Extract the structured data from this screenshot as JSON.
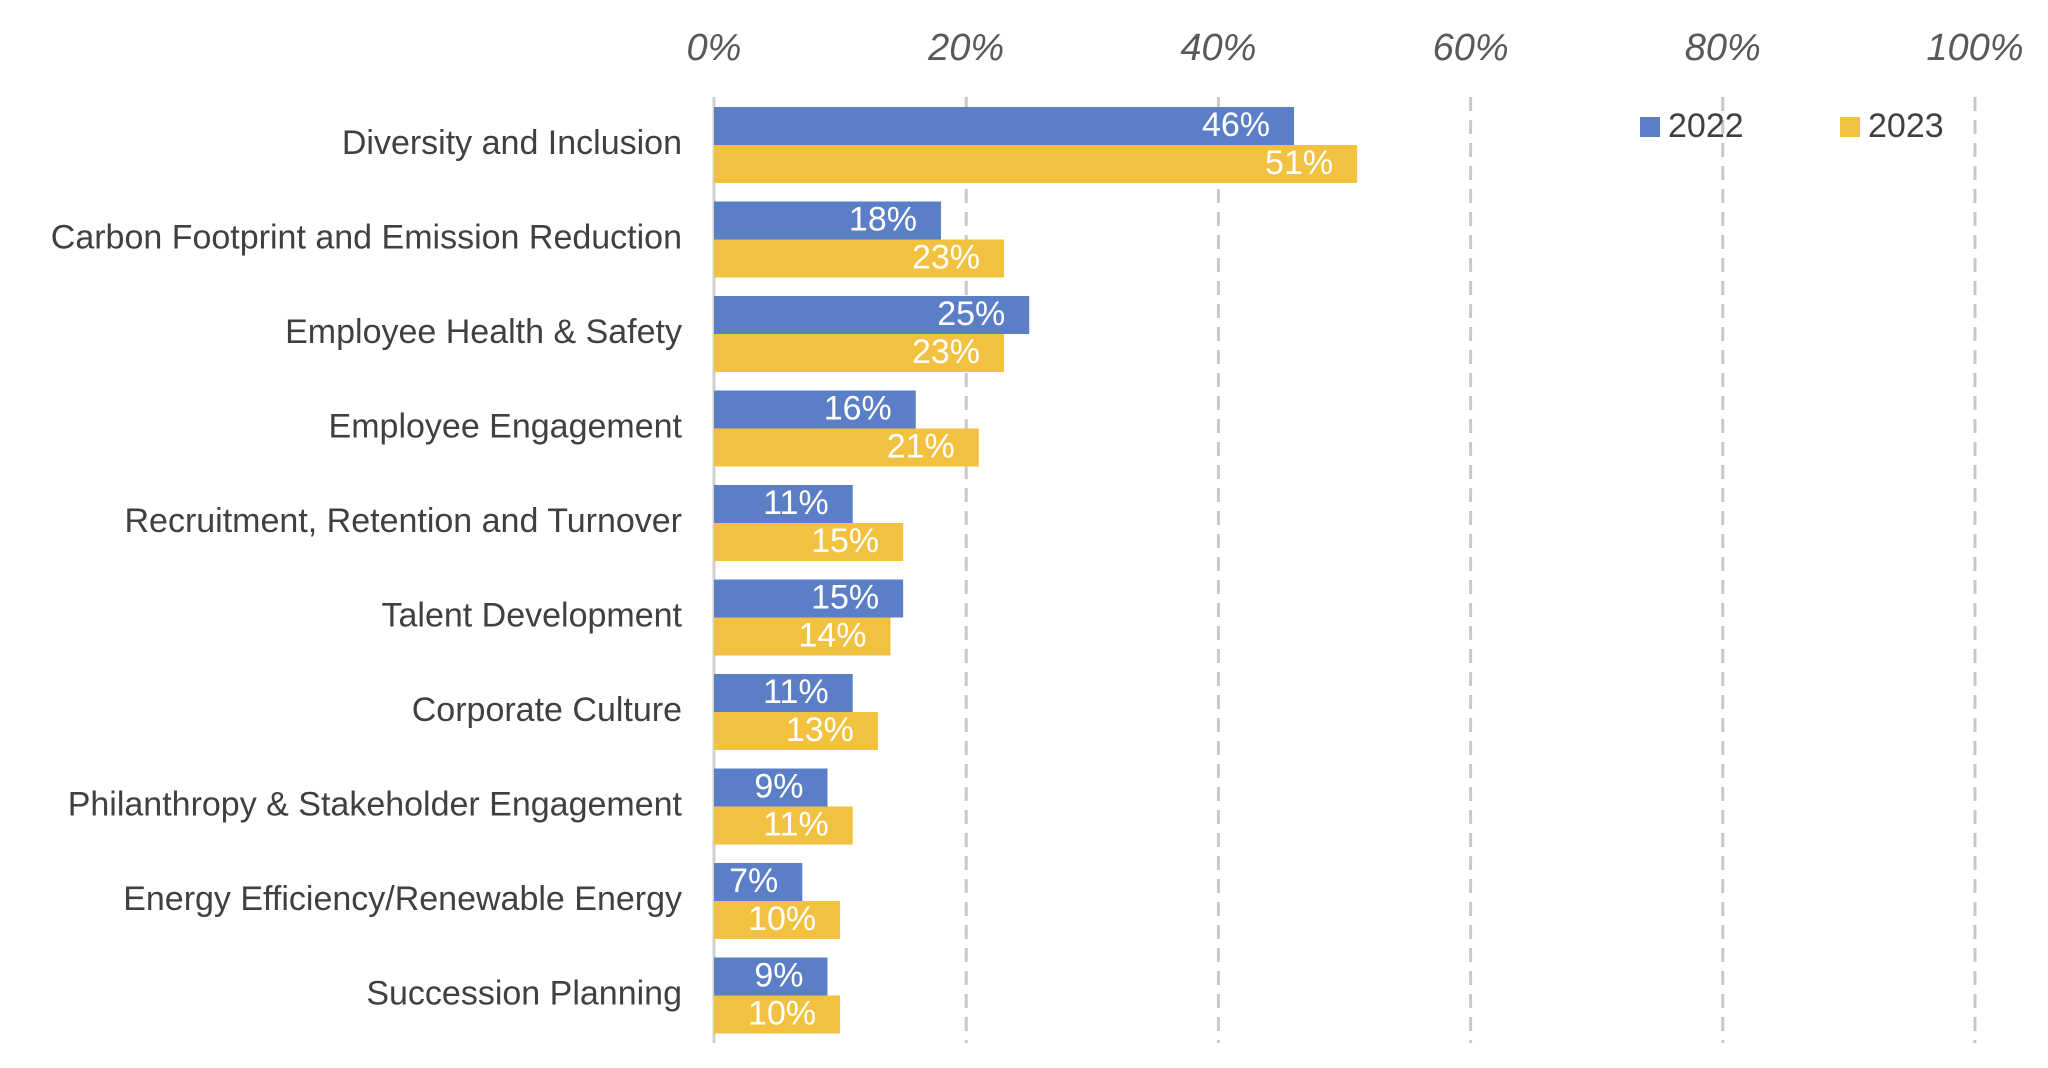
{
  "chart_data": {
    "type": "bar",
    "orientation": "horizontal",
    "categories": [
      "Diversity and Inclusion",
      "Carbon Footprint and Emission Reduction",
      "Employee Health & Safety",
      "Employee Engagement",
      "Recruitment, Retention and Turnover",
      "Talent Development",
      "Corporate Culture",
      "Philanthropy & Stakeholder Engagement",
      "Energy Efficiency/Renewable Energy",
      "Succession Planning"
    ],
    "series": [
      {
        "name": "2022",
        "color": "#5B7FC7",
        "values": [
          46,
          18,
          25,
          16,
          11,
          15,
          11,
          9,
          7,
          9
        ],
        "labels": [
          "46%",
          "18%",
          "25%",
          "16%",
          "11%",
          "15%",
          "11%",
          "9%",
          "7%",
          "9%"
        ]
      },
      {
        "name": "2023",
        "color": "#F2C140",
        "values": [
          51,
          23,
          23,
          21,
          15,
          14,
          13,
          11,
          10,
          10
        ],
        "labels": [
          "51%",
          "23%",
          "23%",
          "21%",
          "15%",
          "14%",
          "13%",
          "11%",
          "10%",
          "10%"
        ]
      }
    ],
    "xlim": [
      0,
      100
    ],
    "x_ticks": [
      0,
      20,
      40,
      60,
      80,
      100
    ],
    "x_tick_labels": [
      "0%",
      "20%",
      "40%",
      "60%",
      "80%",
      "100%"
    ],
    "x_axis_position": "top",
    "grid": "vertical dashed",
    "legend_position": "top-right",
    "title": "",
    "xlabel": "",
    "ylabel": ""
  }
}
